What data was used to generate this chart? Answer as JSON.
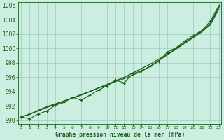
{
  "title": "Graphe pression niveau de la mer (hPa)",
  "bg_color": "#cceee0",
  "grid_color": "#99ccbb",
  "line_color": "#1a5c1a",
  "x_values": [
    0,
    1,
    2,
    3,
    4,
    5,
    6,
    7,
    8,
    9,
    10,
    11,
    12,
    13,
    14,
    15,
    16,
    17,
    18,
    19,
    20,
    21,
    22,
    23
  ],
  "y_main": [
    990.5,
    990.2,
    990.9,
    991.3,
    992.1,
    992.5,
    993.2,
    992.8,
    993.5,
    994.2,
    994.8,
    995.6,
    995.2,
    996.5,
    996.9,
    997.5,
    998.2,
    999.5,
    1000.1,
    1001.0,
    1001.8,
    1002.5,
    1003.8,
    1006.0
  ],
  "y_smooth": [
    990.5,
    990.8,
    991.4,
    991.9,
    992.3,
    992.7,
    993.1,
    993.5,
    994.0,
    994.5,
    995.0,
    995.5,
    996.0,
    996.6,
    997.2,
    997.8,
    998.5,
    999.2,
    1000.0,
    1000.8,
    1001.6,
    1002.4,
    1003.5,
    1005.8
  ],
  "y_trend": [
    990.4,
    990.9,
    991.3,
    991.8,
    992.2,
    992.7,
    993.1,
    993.6,
    994.0,
    994.5,
    994.9,
    995.4,
    995.8,
    996.3,
    996.8,
    997.5,
    998.3,
    999.1,
    999.9,
    1000.7,
    1001.5,
    1002.3,
    1003.3,
    1005.5
  ],
  "ylim": [
    989.5,
    1006.5
  ],
  "xlim": [
    -0.3,
    23.3
  ],
  "yticks": [
    990,
    992,
    994,
    996,
    998,
    1000,
    1002,
    1004,
    1006
  ],
  "xticks": [
    0,
    1,
    2,
    3,
    4,
    5,
    6,
    7,
    8,
    9,
    10,
    11,
    12,
    13,
    14,
    15,
    16,
    17,
    18,
    19,
    20,
    21,
    22,
    23
  ]
}
